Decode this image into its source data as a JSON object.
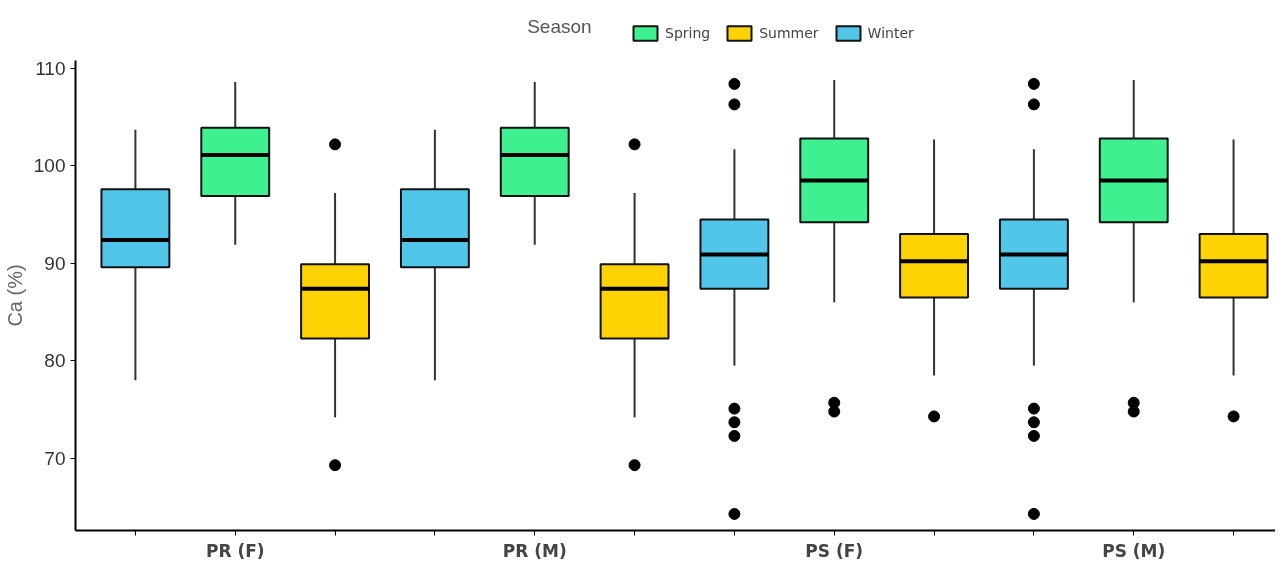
{
  "chart_data": {
    "type": "box",
    "ylabel": "Ca (%)",
    "legend_title": "Season",
    "legend": "top",
    "categories": [
      "PR (F)",
      "PR (M)",
      "PS (F)",
      "PS (M)"
    ],
    "ylim": [
      62.6,
      110.8
    ],
    "yticks": [
      70,
      80,
      90,
      100,
      110
    ],
    "grid": false,
    "series": [
      {
        "name": "Winter",
        "color": "#52c6e8",
        "boxes": [
          {
            "low": 78.0,
            "q1": 89.6,
            "median": 92.4,
            "q3": 97.6,
            "high": 103.7
          },
          {
            "low": 78.0,
            "q1": 89.6,
            "median": 92.4,
            "q3": 97.6,
            "high": 103.7
          },
          {
            "low": 79.5,
            "q1": 87.4,
            "median": 90.9,
            "q3": 94.5,
            "high": 101.7,
            "outliers": [
              108.4,
              106.3,
              75.1,
              73.7,
              72.3,
              64.3
            ]
          },
          {
            "low": 79.5,
            "q1": 87.4,
            "median": 90.9,
            "q3": 94.5,
            "high": 101.7,
            "outliers": [
              108.4,
              106.3,
              75.1,
              73.7,
              72.3,
              64.3
            ]
          }
        ]
      },
      {
        "name": "Spring",
        "color": "#3ef08f",
        "boxes": [
          {
            "low": 91.9,
            "q1": 96.9,
            "median": 101.1,
            "q3": 103.9,
            "high": 108.6
          },
          {
            "low": 91.9,
            "q1": 96.9,
            "median": 101.1,
            "q3": 103.9,
            "high": 108.6
          },
          {
            "low": 86.0,
            "q1": 94.2,
            "median": 98.5,
            "q3": 102.8,
            "high": 108.8,
            "outliers": [
              75.7,
              74.8
            ]
          },
          {
            "low": 86.0,
            "q1": 94.2,
            "median": 98.5,
            "q3": 102.8,
            "high": 108.8,
            "outliers": [
              75.7,
              74.8
            ]
          }
        ]
      },
      {
        "name": "Summer",
        "color": "#fed304",
        "boxes": [
          {
            "low": 74.2,
            "q1": 82.3,
            "median": 87.4,
            "q3": 89.9,
            "high": 97.2,
            "outliers": [
              102.2,
              69.3
            ]
          },
          {
            "low": 74.2,
            "q1": 82.3,
            "median": 87.4,
            "q3": 89.9,
            "high": 97.2,
            "outliers": [
              102.2,
              69.3
            ]
          },
          {
            "low": 78.5,
            "q1": 86.5,
            "median": 90.2,
            "q3": 93.0,
            "high": 102.7,
            "outliers": [
              74.3
            ]
          },
          {
            "low": 78.5,
            "q1": 86.5,
            "median": 90.2,
            "q3": 93.0,
            "high": 102.7,
            "outliers": [
              74.3
            ]
          }
        ]
      }
    ]
  }
}
